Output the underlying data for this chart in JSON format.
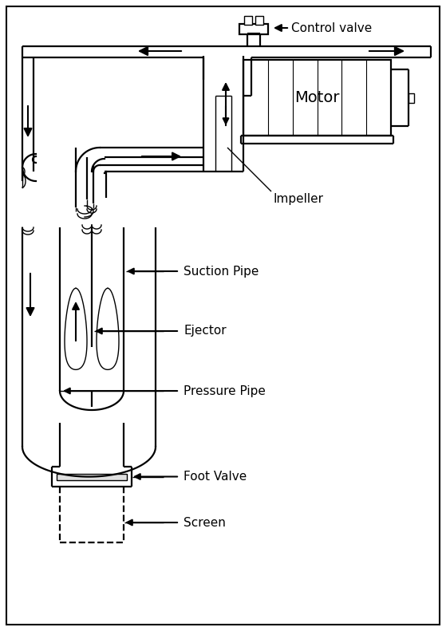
{
  "labels": {
    "control_valve": "Control valve",
    "motor": "Motor",
    "impeller": "Impeller",
    "suction_pipe": "Suction Pipe",
    "ejector": "Ejector",
    "pressure_pipe": "Pressure Pipe",
    "foot_valve": "Foot Valve",
    "screen": "Screen"
  },
  "lw_pipe": 1.6,
  "lw_thin": 1.0,
  "font_size": 11,
  "arrow_scale": 16
}
